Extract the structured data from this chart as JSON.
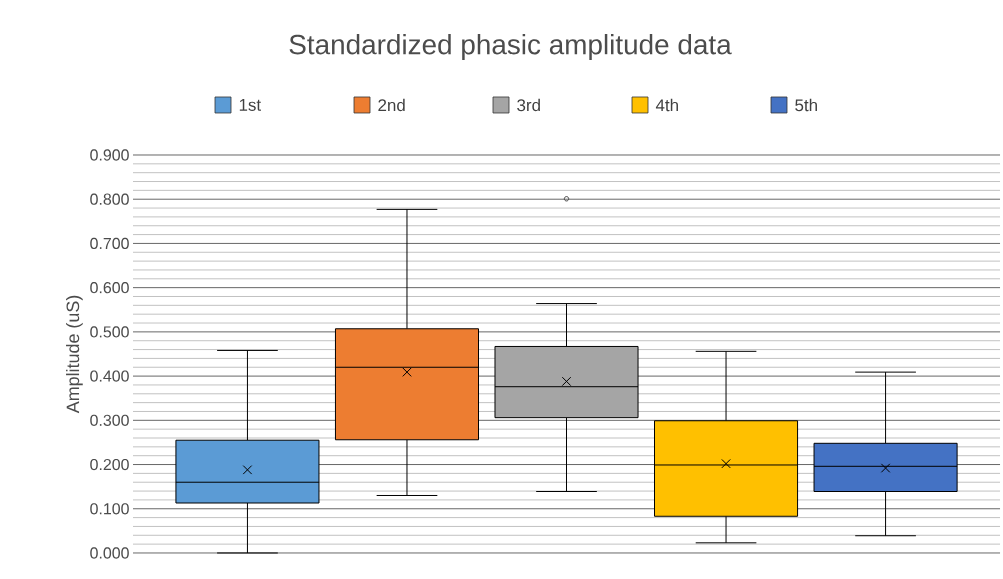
{
  "chart_data": {
    "type": "box",
    "title": "Standardized phasic amplitude data",
    "ylabel": "Amplitude (uS)",
    "categories": [
      null
    ],
    "series": [
      {
        "name": "1st",
        "color": "#5b9bd5",
        "boxes": [
          {
            "low": 0.0,
            "q1": 0.113,
            "median": 0.16,
            "q3": 0.255,
            "high": 0.458,
            "mean": 0.188
          }
        ]
      },
      {
        "name": "2nd",
        "color": "#ed7d31",
        "boxes": [
          {
            "low": 0.13,
            "q1": 0.256,
            "median": 0.42,
            "q3": 0.507,
            "high": 0.777,
            "mean": 0.409
          }
        ]
      },
      {
        "name": "3rd",
        "color": "#a5a5a5",
        "boxes": [
          {
            "low": 0.139,
            "q1": 0.306,
            "median": 0.376,
            "q3": 0.467,
            "high": 0.564,
            "mean": 0.388,
            "outliers": [
              0.801
            ]
          }
        ]
      },
      {
        "name": "4th",
        "color": "#ffc000",
        "boxes": [
          {
            "low": 0.023,
            "q1": 0.083,
            "median": 0.199,
            "q3": 0.299,
            "high": 0.456,
            "mean": 0.202
          }
        ]
      },
      {
        "name": "5th",
        "color": "#4472c4",
        "boxes": [
          {
            "low": 0.039,
            "q1": 0.139,
            "median": 0.196,
            "q3": 0.248,
            "high": 0.409,
            "mean": 0.192
          }
        ]
      }
    ],
    "ylim": [
      0,
      0.9
    ],
    "yticks": [
      {
        "value": 0,
        "label": "0.000"
      },
      {
        "value": 0.1,
        "label": "0.100"
      },
      {
        "value": 0.2,
        "label": "0.200"
      },
      {
        "value": 0.3,
        "label": "0.300"
      },
      {
        "value": 0.4,
        "label": "0.400"
      },
      {
        "value": 0.5,
        "label": "0.500"
      },
      {
        "value": 0.6,
        "label": "0.600"
      },
      {
        "value": 0.7,
        "label": "0.700"
      },
      {
        "value": 0.8,
        "label": "0.800"
      },
      {
        "value": 0.9,
        "label": "0.900"
      }
    ],
    "grid": "y",
    "legend": "top"
  }
}
